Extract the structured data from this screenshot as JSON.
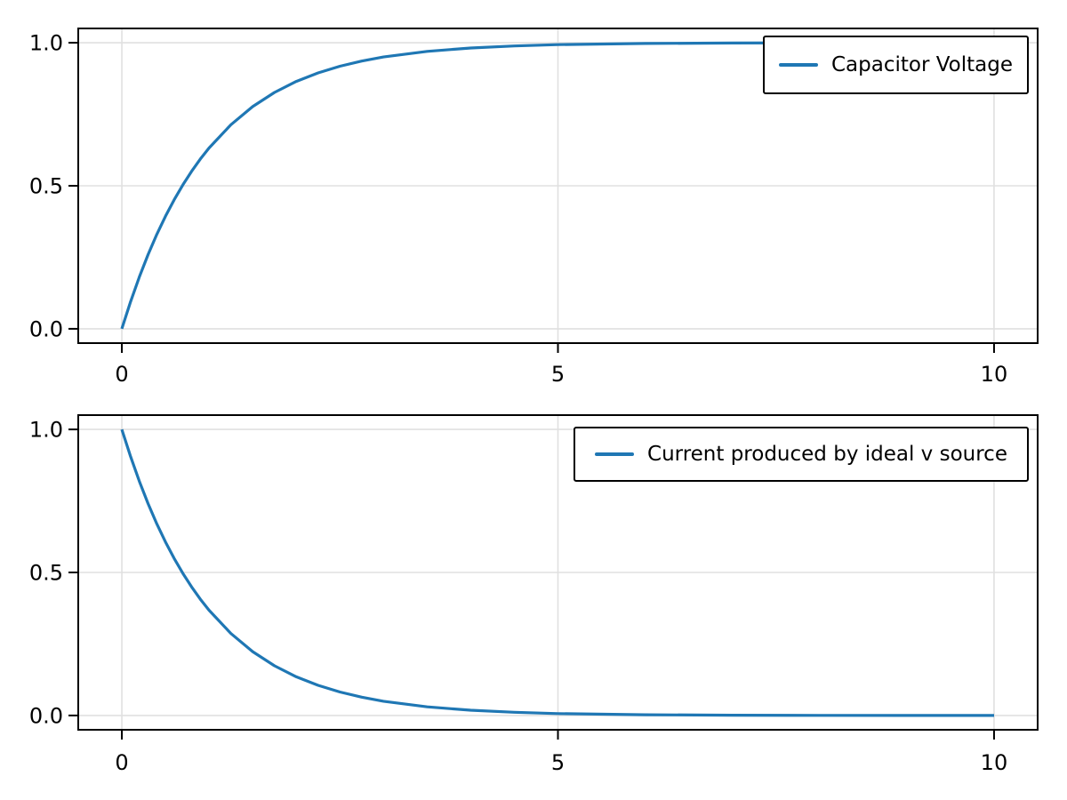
{
  "figure": {
    "background": "#ffffff"
  },
  "styles": {
    "line_color": "#1f77b4",
    "grid_color": "#e0e0e0",
    "frame_color": "#000000",
    "tick_color": "#000000",
    "legend_border_color": "#000000",
    "legend_background": "#ffffff"
  },
  "chart_data": [
    {
      "type": "line",
      "title": "",
      "xlabel": "",
      "ylabel": "",
      "xlim": [
        -0.5,
        10.5
      ],
      "ylim": [
        -0.05,
        1.05
      ],
      "xticks": [
        0,
        5,
        10
      ],
      "xtick_labels": [
        "0",
        "5",
        "10"
      ],
      "yticks": [
        0,
        0.5,
        1
      ],
      "ytick_labels": [
        "0.0",
        "0.5",
        "1.0"
      ],
      "grid": true,
      "legend_position": "upper right",
      "x": [
        0,
        0.1,
        0.2,
        0.3,
        0.4,
        0.5,
        0.6,
        0.7,
        0.8,
        0.9,
        1.0,
        1.25,
        1.5,
        1.75,
        2.0,
        2.25,
        2.5,
        2.75,
        3.0,
        3.5,
        4.0,
        4.5,
        5.0,
        6.0,
        7.0,
        8.0,
        9.0,
        10.0
      ],
      "series": [
        {
          "name": "Capacitor Voltage",
          "color": "#1f77b4",
          "values": [
            0.0,
            0.0952,
            0.1813,
            0.2592,
            0.3297,
            0.3935,
            0.4512,
            0.5034,
            0.5507,
            0.5934,
            0.6321,
            0.7135,
            0.7769,
            0.8262,
            0.8647,
            0.8946,
            0.9179,
            0.9361,
            0.9502,
            0.9698,
            0.9817,
            0.9889,
            0.9933,
            0.9975,
            0.9991,
            0.9997,
            0.9999,
            1.0
          ]
        }
      ]
    },
    {
      "type": "line",
      "title": "",
      "xlabel": "",
      "ylabel": "",
      "xlim": [
        -0.5,
        10.5
      ],
      "ylim": [
        -0.05,
        1.05
      ],
      "xticks": [
        0,
        5,
        10
      ],
      "xtick_labels": [
        "0",
        "5",
        "10"
      ],
      "yticks": [
        0,
        0.5,
        1
      ],
      "ytick_labels": [
        "0.0",
        "0.5",
        "1.0"
      ],
      "grid": true,
      "legend_position": "upper right",
      "x": [
        0,
        0.1,
        0.2,
        0.3,
        0.4,
        0.5,
        0.6,
        0.7,
        0.8,
        0.9,
        1.0,
        1.25,
        1.5,
        1.75,
        2.0,
        2.25,
        2.5,
        2.75,
        3.0,
        3.5,
        4.0,
        4.5,
        5.0,
        6.0,
        7.0,
        8.0,
        9.0,
        10.0
      ],
      "series": [
        {
          "name": "Current produced by ideal v source",
          "color": "#1f77b4",
          "values": [
            1.0,
            0.9048,
            0.8187,
            0.7408,
            0.6703,
            0.6065,
            0.5488,
            0.4966,
            0.4493,
            0.4066,
            0.3679,
            0.2865,
            0.2231,
            0.1738,
            0.1353,
            0.1054,
            0.0821,
            0.0639,
            0.0498,
            0.0302,
            0.0183,
            0.0111,
            0.0067,
            0.0025,
            0.0009,
            0.0003,
            0.0001,
            0.0
          ]
        }
      ]
    }
  ]
}
